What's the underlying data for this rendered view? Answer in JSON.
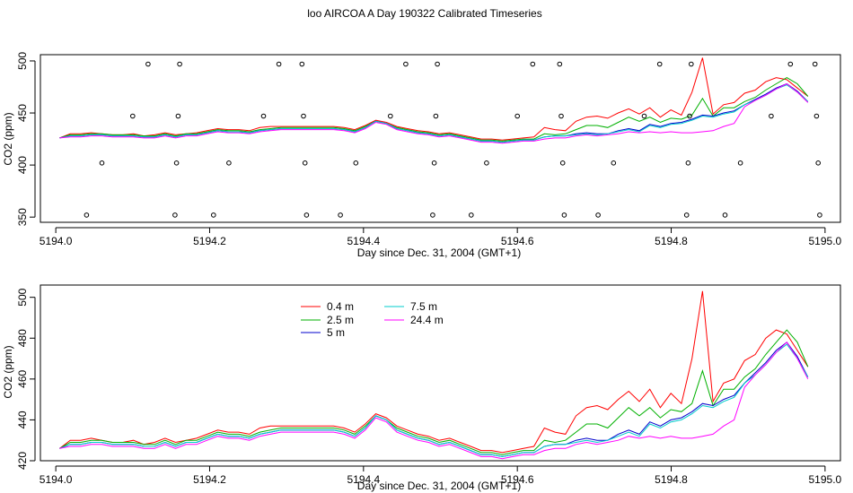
{
  "title": "loo AIRCOA A  Day 190322  Calibrated Timeseries",
  "chart_data": [
    {
      "type": "scatter",
      "xlabel": "Day since Dec. 31, 2004 (GMT+1)",
      "ylabel": "CO2 (ppm)",
      "xlim": [
        5193.98,
        5195.02
      ],
      "ylim": [
        345,
        506
      ],
      "xticks": [
        "5194.0",
        "5194.2",
        "5194.4",
        "5194.6",
        "5194.8",
        "5195.0"
      ],
      "xtick_values": [
        5194.0,
        5194.2,
        5194.4,
        5194.6,
        5194.8,
        5195.0
      ],
      "yticks": [
        "350",
        "400",
        "450",
        "500"
      ],
      "ytick_values": [
        350,
        400,
        450,
        500
      ],
      "series": [
        {
          "color": "#ff0000",
          "values": [
            426,
            430,
            430,
            431,
            430,
            429,
            429,
            430,
            428,
            429,
            431,
            429,
            430,
            431,
            433,
            435,
            434,
            434,
            433,
            436,
            437,
            437,
            437,
            437,
            437,
            437,
            437,
            436,
            434,
            438,
            443,
            441,
            437,
            435,
            433,
            432,
            430,
            431,
            429,
            427,
            425,
            425,
            424,
            425,
            426,
            427,
            436,
            434,
            433,
            442,
            446,
            447,
            445,
            450,
            454,
            449,
            455,
            446,
            453,
            448,
            470,
            503,
            449,
            458,
            460,
            469,
            472,
            480,
            484,
            482,
            474,
            466
          ]
        },
        {
          "color": "#00b000",
          "values": [
            426,
            429,
            429,
            430,
            430,
            429,
            429,
            429,
            428,
            428,
            430,
            428,
            430,
            430,
            432,
            434,
            433,
            433,
            432,
            434,
            435,
            436,
            436,
            436,
            436,
            436,
            436,
            435,
            433,
            437,
            442,
            440,
            436,
            434,
            432,
            431,
            429,
            430,
            428,
            426,
            424,
            424,
            423,
            424,
            425,
            425,
            430,
            429,
            430,
            434,
            438,
            438,
            436,
            441,
            446,
            442,
            446,
            441,
            445,
            444,
            448,
            464,
            447,
            455,
            455,
            461,
            465,
            472,
            478,
            484,
            478,
            466
          ]
        },
        {
          "color": "#0000cc",
          "values": [
            426,
            428,
            428,
            429,
            429,
            428,
            428,
            428,
            427,
            427,
            429,
            427,
            429,
            429,
            431,
            433,
            432,
            432,
            431,
            433,
            434,
            435,
            435,
            435,
            435,
            435,
            435,
            434,
            432,
            436,
            442,
            440,
            435,
            433,
            431,
            430,
            428,
            429,
            427,
            425,
            423,
            423,
            422,
            423,
            424,
            424,
            427,
            428,
            428,
            430,
            431,
            430,
            430,
            433,
            435,
            433,
            439,
            437,
            440,
            441,
            444,
            448,
            447,
            450,
            452,
            458,
            463,
            468,
            474,
            478,
            471,
            461
          ]
        },
        {
          "color": "#00cccc",
          "values": [
            426,
            428,
            428,
            429,
            429,
            428,
            428,
            428,
            427,
            427,
            429,
            427,
            429,
            429,
            431,
            433,
            432,
            432,
            431,
            433,
            434,
            435,
            435,
            435,
            435,
            435,
            435,
            434,
            432,
            436,
            442,
            440,
            435,
            433,
            431,
            430,
            428,
            429,
            427,
            425,
            423,
            423,
            422,
            423,
            424,
            424,
            427,
            428,
            428,
            429,
            430,
            429,
            430,
            432,
            434,
            432,
            438,
            436,
            439,
            440,
            443,
            447,
            446,
            449,
            451,
            458,
            462,
            467,
            473,
            477,
            470,
            461
          ]
        },
        {
          "color": "#ff00ff",
          "values": [
            426,
            427,
            427,
            428,
            428,
            427,
            427,
            427,
            426,
            426,
            428,
            426,
            428,
            428,
            430,
            432,
            431,
            431,
            430,
            432,
            433,
            434,
            434,
            434,
            434,
            434,
            434,
            433,
            431,
            435,
            441,
            439,
            434,
            432,
            430,
            429,
            427,
            428,
            426,
            424,
            422,
            422,
            421,
            422,
            423,
            423,
            425,
            426,
            426,
            428,
            429,
            428,
            429,
            430,
            432,
            431,
            432,
            431,
            432,
            431,
            431,
            432,
            433,
            437,
            440,
            456,
            462,
            467,
            473,
            478,
            470,
            460
          ]
        }
      ],
      "x_start": 5194.005,
      "x_step": 0.0137,
      "scatter_points": [
        {
          "x": 5194.04,
          "y": 352
        },
        {
          "x": 5194.06,
          "y": 402
        },
        {
          "x": 5194.1,
          "y": 447
        },
        {
          "x": 5194.12,
          "y": 497
        },
        {
          "x": 5194.155,
          "y": 352
        },
        {
          "x": 5194.157,
          "y": 402
        },
        {
          "x": 5194.159,
          "y": 447
        },
        {
          "x": 5194.161,
          "y": 497
        },
        {
          "x": 5194.205,
          "y": 352
        },
        {
          "x": 5194.225,
          "y": 402
        },
        {
          "x": 5194.27,
          "y": 447
        },
        {
          "x": 5194.29,
          "y": 497
        },
        {
          "x": 5194.32,
          "y": 497
        },
        {
          "x": 5194.322,
          "y": 447
        },
        {
          "x": 5194.324,
          "y": 402
        },
        {
          "x": 5194.326,
          "y": 352
        },
        {
          "x": 5194.37,
          "y": 352
        },
        {
          "x": 5194.39,
          "y": 402
        },
        {
          "x": 5194.435,
          "y": 447
        },
        {
          "x": 5194.455,
          "y": 497
        },
        {
          "x": 5194.49,
          "y": 352
        },
        {
          "x": 5194.492,
          "y": 402
        },
        {
          "x": 5194.494,
          "y": 447
        },
        {
          "x": 5194.496,
          "y": 497
        },
        {
          "x": 5194.54,
          "y": 352
        },
        {
          "x": 5194.56,
          "y": 402
        },
        {
          "x": 5194.6,
          "y": 447
        },
        {
          "x": 5194.62,
          "y": 497
        },
        {
          "x": 5194.655,
          "y": 497
        },
        {
          "x": 5194.657,
          "y": 447
        },
        {
          "x": 5194.659,
          "y": 402
        },
        {
          "x": 5194.661,
          "y": 352
        },
        {
          "x": 5194.705,
          "y": 352
        },
        {
          "x": 5194.725,
          "y": 402
        },
        {
          "x": 5194.765,
          "y": 447
        },
        {
          "x": 5194.785,
          "y": 497
        },
        {
          "x": 5194.82,
          "y": 352
        },
        {
          "x": 5194.822,
          "y": 402
        },
        {
          "x": 5194.824,
          "y": 447
        },
        {
          "x": 5194.826,
          "y": 497
        },
        {
          "x": 5194.87,
          "y": 352
        },
        {
          "x": 5194.89,
          "y": 402
        },
        {
          "x": 5194.93,
          "y": 447
        },
        {
          "x": 5194.955,
          "y": 497
        },
        {
          "x": 5194.987,
          "y": 497
        },
        {
          "x": 5194.989,
          "y": 447
        },
        {
          "x": 5194.991,
          "y": 402
        },
        {
          "x": 5194.993,
          "y": 352
        }
      ]
    },
    {
      "type": "line",
      "xlabel": "Day since Dec. 31, 2004 (GMT+1)",
      "ylabel": "CO2 (ppm)",
      "xlim": [
        5193.98,
        5195.02
      ],
      "ylim": [
        420,
        506
      ],
      "xticks": [
        "5194.0",
        "5194.2",
        "5194.4",
        "5194.6",
        "5194.8",
        "5195.0"
      ],
      "xtick_values": [
        5194.0,
        5194.2,
        5194.4,
        5194.6,
        5194.8,
        5195.0
      ],
      "yticks": [
        "420",
        "440",
        "460",
        "480",
        "500"
      ],
      "ytick_values": [
        420,
        440,
        460,
        480,
        500
      ],
      "legend": [
        {
          "name": "0.4 m",
          "color": "#ff0000"
        },
        {
          "name": "2.5 m",
          "color": "#00b000"
        },
        {
          "name": "5 m",
          "color": "#0000cc"
        },
        {
          "name": "7.5 m",
          "color": "#00cccc"
        },
        {
          "name": "24.4 m",
          "color": "#ff00ff"
        }
      ]
    }
  ]
}
